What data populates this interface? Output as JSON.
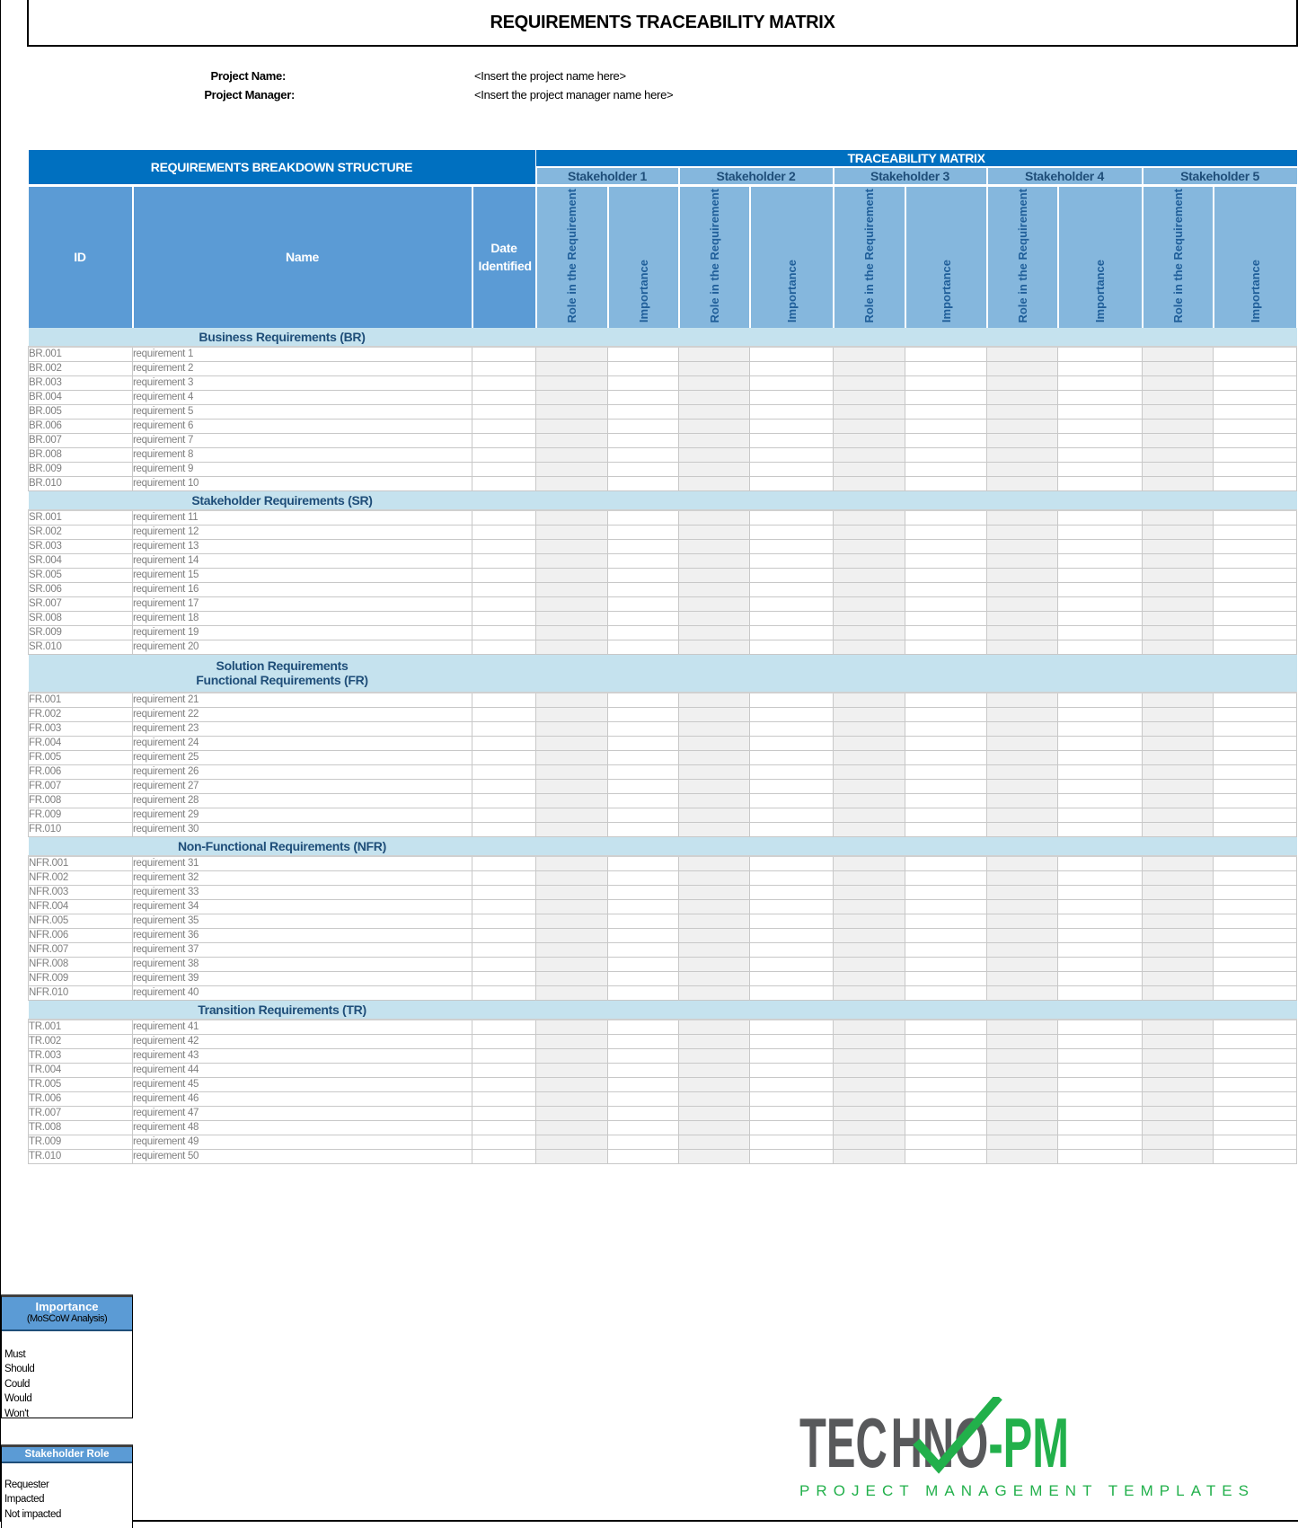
{
  "title": "REQUIREMENTS TRACEABILITY MATRIX",
  "project": {
    "name_label": "Project Name:",
    "name_value": "<Insert the project name here>",
    "manager_label": "Project Manager:",
    "manager_value": "<Insert the project manager name here>"
  },
  "header": {
    "rbs": "REQUIREMENTS BREAKDOWN STRUCTURE",
    "traceability": "TRACEABILITY MATRIX",
    "id": "ID",
    "name": "Name",
    "date": "Date Identified",
    "stakeholders": [
      "Stakeholder 1",
      "Stakeholder 2",
      "Stakeholder 3",
      "Stakeholder 4",
      "Stakeholder 5"
    ],
    "role": "Role in the Requirement",
    "importance": "Importance"
  },
  "sections": [
    {
      "title": [
        "Business Requirements (BR)"
      ],
      "ids": [
        "BR.001",
        "BR.002",
        "BR.003",
        "BR.004",
        "BR.005",
        "BR.006",
        "BR.007",
        "BR.008",
        "BR.009",
        "BR.010"
      ],
      "names": [
        "requirement 1",
        "requirement 2",
        "requirement 3",
        "requirement 4",
        "requirement 5",
        "requirement 6",
        "requirement 7",
        "requirement 8",
        "requirement 9",
        "requirement 10"
      ]
    },
    {
      "title": [
        "Stakeholder Requirements (SR)"
      ],
      "ids": [
        "SR.001",
        "SR.002",
        "SR.003",
        "SR.004",
        "SR.005",
        "SR.006",
        "SR.007",
        "SR.008",
        "SR.009",
        "SR.010"
      ],
      "names": [
        "requirement 11",
        "requirement 12",
        "requirement 13",
        "requirement 14",
        "requirement 15",
        "requirement 16",
        "requirement 17",
        "requirement 18",
        "requirement 19",
        "requirement 20"
      ]
    },
    {
      "title": [
        "Solution Requirements",
        "Functional Requirements (FR)"
      ],
      "ids": [
        "FR.001",
        "FR.002",
        "FR.003",
        "FR.004",
        "FR.005",
        "FR.006",
        "FR.007",
        "FR.008",
        "FR.009",
        "FR.010"
      ],
      "names": [
        "requirement 21",
        "requirement 22",
        "requirement 23",
        "requirement 24",
        "requirement 25",
        "requirement 26",
        "requirement 27",
        "requirement 28",
        "requirement 29",
        "requirement 30"
      ]
    },
    {
      "title": [
        "Non-Functional Requirements (NFR)"
      ],
      "ids": [
        "NFR.001",
        "NFR.002",
        "NFR.003",
        "NFR.004",
        "NFR.005",
        "NFR.006",
        "NFR.007",
        "NFR.008",
        "NFR.009",
        "NFR.010"
      ],
      "names": [
        "requirement 31",
        "requirement 32",
        "requirement 33",
        "requirement 34",
        "requirement 35",
        "requirement 36",
        "requirement 37",
        "requirement 38",
        "requirement 39",
        "requirement 40"
      ]
    },
    {
      "title": [
        "Transition Requirements (TR)"
      ],
      "ids": [
        "TR.001",
        "TR.002",
        "TR.003",
        "TR.004",
        "TR.005",
        "TR.006",
        "TR.007",
        "TR.008",
        "TR.009",
        "TR.010"
      ],
      "names": [
        "requirement 41",
        "requirement 42",
        "requirement 43",
        "requirement 44",
        "requirement 45",
        "requirement 46",
        "requirement 47",
        "requirement 48",
        "requirement 49",
        "requirement 50"
      ]
    }
  ],
  "legend_importance": {
    "title": "Importance",
    "subtitle": "(MoSCoW Analysis)",
    "items": [
      "Must",
      "Should",
      "Could",
      "Would",
      "Won't"
    ]
  },
  "legend_role": {
    "title": "Stakeholder Role",
    "items": [
      "Requester",
      "Impacted",
      "Not impacted"
    ]
  },
  "logo": {
    "part1": "TEC",
    "part2": "HNO",
    "part3": "-PM",
    "tagline": "PROJECT MANAGEMENT TEMPLATES"
  },
  "colors": {
    "dark_blue": "#0070C0",
    "mid_blue": "#5B9BD5",
    "light_blue": "#85B7DD",
    "section": "#C5E2EE",
    "logo_grey": "#58595B",
    "logo_green": "#22B04B"
  }
}
